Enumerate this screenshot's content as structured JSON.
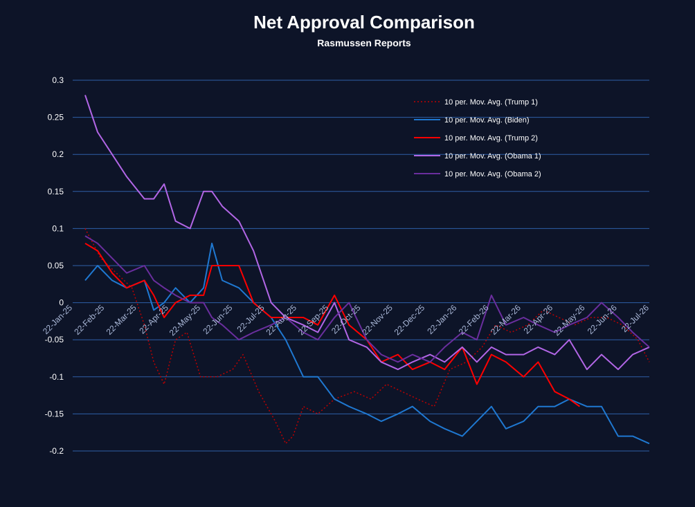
{
  "chart_data": {
    "type": "line",
    "title": "Net Approval Comparison",
    "subtitle": "Rasmussen Reports",
    "xlabel": "",
    "ylabel": "",
    "ylim": [
      -0.2,
      0.3
    ],
    "y_ticks": [
      0.3,
      0.25,
      0.2,
      0.15,
      0.1,
      0.05,
      0,
      -0.05,
      -0.1,
      -0.15,
      -0.2
    ],
    "y_tick_labels": [
      "0.3",
      "0.25",
      "0.2",
      "0.15",
      "0.1",
      "0.05",
      "0",
      "-0.05",
      "-0.1",
      "-0.15",
      "-0.2"
    ],
    "x_tick_labels": [
      "22-Jan-25",
      "22-Feb-25",
      "22-Mar-25",
      "22-Apr-25",
      "22-May-25",
      "22-Jun-25",
      "22-Jul-25",
      "22-Aug-25",
      "22-Sep-25",
      "22-Oct-25",
      "22-Nov-25",
      "22-Dec-25",
      "22-Jan-26",
      "22-Feb-26",
      "22-Mar-26",
      "22-Apr-26",
      "22-May-26",
      "22-Jun-26",
      "22-Jul-26"
    ],
    "x_range": [
      "2025-01-22",
      "2026-07-31"
    ],
    "grid": "horizontal",
    "legend_position": "top-right",
    "series": [
      {
        "name": "10 per. Mov. Avg. (Trump 1)",
        "color": "#c00000",
        "dash": "dotted",
        "x": [
          "2025-02-03",
          "2025-02-18",
          "2025-03-05",
          "2025-03-20",
          "2025-04-01",
          "2025-04-10",
          "2025-04-20",
          "2025-05-01",
          "2025-05-12",
          "2025-05-25",
          "2025-06-10",
          "2025-06-25",
          "2025-07-05",
          "2025-07-20",
          "2025-08-05",
          "2025-08-15",
          "2025-08-22",
          "2025-09-01",
          "2025-09-15",
          "2025-10-01",
          "2025-10-20",
          "2025-11-05",
          "2025-11-20",
          "2025-12-05",
          "2025-12-20",
          "2026-01-05",
          "2026-01-20",
          "2026-02-05",
          "2026-02-20",
          "2026-03-05",
          "2026-03-20",
          "2026-04-05",
          "2026-04-20",
          "2026-05-05",
          "2026-05-20",
          "2026-06-05",
          "2026-06-20",
          "2026-07-05",
          "2026-07-20",
          "2026-07-31"
        ],
        "values": [
          0.1,
          0.06,
          0.04,
          0.02,
          -0.03,
          -0.08,
          -0.11,
          -0.05,
          -0.04,
          -0.1,
          -0.1,
          -0.09,
          -0.07,
          -0.12,
          -0.16,
          -0.19,
          -0.18,
          -0.14,
          -0.15,
          -0.13,
          -0.12,
          -0.13,
          -0.11,
          -0.12,
          -0.13,
          -0.14,
          -0.09,
          -0.08,
          -0.06,
          -0.03,
          -0.04,
          -0.03,
          -0.01,
          -0.02,
          -0.03,
          -0.02,
          -0.02,
          -0.03,
          -0.05,
          -0.08
        ]
      },
      {
        "name": "10 per. Mov. Avg. (Biden)",
        "color": "#1f78d1",
        "dash": "solid",
        "x": [
          "2025-02-03",
          "2025-02-15",
          "2025-03-01",
          "2025-03-15",
          "2025-04-01",
          "2025-04-10",
          "2025-04-20",
          "2025-05-01",
          "2025-05-15",
          "2025-05-28",
          "2025-06-05",
          "2025-06-15",
          "2025-07-01",
          "2025-07-15",
          "2025-08-01",
          "2025-08-15",
          "2025-09-01",
          "2025-09-15",
          "2025-10-01",
          "2025-10-15",
          "2025-11-01",
          "2025-11-15",
          "2025-12-01",
          "2025-12-15",
          "2026-01-01",
          "2026-01-15",
          "2026-02-01",
          "2026-02-15",
          "2026-03-01",
          "2026-03-15",
          "2026-04-01",
          "2026-04-15",
          "2026-05-01",
          "2026-05-15",
          "2026-06-01",
          "2026-06-15",
          "2026-07-01",
          "2026-07-15",
          "2026-07-31"
        ],
        "values": [
          0.03,
          0.05,
          0.03,
          0.02,
          0.03,
          -0.01,
          0.0,
          0.02,
          0.0,
          0.02,
          0.08,
          0.03,
          0.02,
          0.0,
          -0.02,
          -0.05,
          -0.1,
          -0.1,
          -0.13,
          -0.14,
          -0.15,
          -0.16,
          -0.15,
          -0.14,
          -0.16,
          -0.17,
          -0.18,
          -0.16,
          -0.14,
          -0.17,
          -0.16,
          -0.14,
          -0.14,
          -0.13,
          -0.14,
          -0.14,
          -0.18,
          -0.18,
          -0.19
        ]
      },
      {
        "name": "10 per. Mov. Avg. (Trump 2)",
        "color": "#ff0000",
        "dash": "solid",
        "x": [
          "2025-02-03",
          "2025-02-15",
          "2025-03-01",
          "2025-03-15",
          "2025-04-01",
          "2025-04-10",
          "2025-04-20",
          "2025-05-01",
          "2025-05-15",
          "2025-05-28",
          "2025-06-05",
          "2025-06-15",
          "2025-07-01",
          "2025-07-15",
          "2025-08-01",
          "2025-08-15",
          "2025-09-01",
          "2025-09-15",
          "2025-10-01",
          "2025-10-15",
          "2025-11-01",
          "2025-11-15",
          "2025-12-01",
          "2025-12-15",
          "2026-01-01",
          "2026-01-15",
          "2026-02-01",
          "2026-02-15",
          "2026-03-01",
          "2026-03-15",
          "2026-04-01",
          "2026-04-15",
          "2026-05-01",
          "2026-05-15",
          "2026-05-25"
        ],
        "values": [
          0.08,
          0.07,
          0.04,
          0.02,
          0.03,
          0.01,
          -0.02,
          0.0,
          0.01,
          0.01,
          0.05,
          0.05,
          0.05,
          0.0,
          -0.02,
          -0.02,
          -0.02,
          -0.03,
          0.01,
          -0.03,
          -0.05,
          -0.08,
          -0.07,
          -0.09,
          -0.08,
          -0.09,
          -0.06,
          -0.11,
          -0.07,
          -0.08,
          -0.1,
          -0.08,
          -0.12,
          -0.13,
          -0.14
        ]
      },
      {
        "name": "10 per. Mov. Avg. (Obama 1)",
        "color": "#b266e6",
        "dash": "solid",
        "x": [
          "2025-02-03",
          "2025-02-15",
          "2025-03-01",
          "2025-03-15",
          "2025-04-01",
          "2025-04-10",
          "2025-04-20",
          "2025-05-01",
          "2025-05-15",
          "2025-05-28",
          "2025-06-05",
          "2025-06-15",
          "2025-07-01",
          "2025-07-15",
          "2025-08-01",
          "2025-08-15",
          "2025-09-01",
          "2025-09-15",
          "2025-10-01",
          "2025-10-15",
          "2025-11-01",
          "2025-11-15",
          "2025-12-01",
          "2025-12-15",
          "2026-01-01",
          "2026-01-15",
          "2026-02-01",
          "2026-02-15",
          "2026-03-01",
          "2026-03-15",
          "2026-04-01",
          "2026-04-15",
          "2026-05-01",
          "2026-05-15",
          "2026-06-01",
          "2026-06-15",
          "2026-07-01",
          "2026-07-15",
          "2026-07-31"
        ],
        "values": [
          0.28,
          0.23,
          0.2,
          0.17,
          0.14,
          0.14,
          0.16,
          0.11,
          0.1,
          0.15,
          0.15,
          0.13,
          0.11,
          0.07,
          0.0,
          -0.02,
          -0.03,
          -0.04,
          0.0,
          -0.05,
          -0.06,
          -0.08,
          -0.09,
          -0.08,
          -0.07,
          -0.08,
          -0.06,
          -0.08,
          -0.06,
          -0.07,
          -0.07,
          -0.06,
          -0.07,
          -0.05,
          -0.09,
          -0.07,
          -0.09,
          -0.07,
          -0.06
        ]
      },
      {
        "name": "10 per. Mov. Avg. (Obama 2)",
        "color": "#6a2e9e",
        "dash": "solid",
        "x": [
          "2025-02-03",
          "2025-02-15",
          "2025-03-01",
          "2025-03-15",
          "2025-04-01",
          "2025-04-10",
          "2025-04-20",
          "2025-05-01",
          "2025-05-15",
          "2025-05-28",
          "2025-06-05",
          "2025-06-15",
          "2025-07-01",
          "2025-07-15",
          "2025-08-01",
          "2025-08-15",
          "2025-09-01",
          "2025-09-15",
          "2025-10-01",
          "2025-10-15",
          "2025-11-01",
          "2025-11-15",
          "2025-12-01",
          "2025-12-15",
          "2026-01-01",
          "2026-01-15",
          "2026-02-01",
          "2026-02-15",
          "2026-03-01",
          "2026-03-15",
          "2026-04-01",
          "2026-04-15",
          "2026-05-01",
          "2026-05-15",
          "2026-06-01",
          "2026-06-15",
          "2026-07-01",
          "2026-07-15",
          "2026-07-31"
        ],
        "values": [
          0.09,
          0.08,
          0.06,
          0.04,
          0.05,
          0.03,
          0.02,
          0.01,
          0.0,
          0.0,
          -0.02,
          -0.03,
          -0.05,
          -0.04,
          -0.03,
          -0.02,
          -0.04,
          -0.05,
          -0.02,
          0.0,
          -0.05,
          -0.07,
          -0.08,
          -0.07,
          -0.08,
          -0.06,
          -0.04,
          -0.05,
          0.01,
          -0.03,
          -0.02,
          -0.03,
          -0.04,
          -0.03,
          -0.02,
          0.0,
          -0.02,
          -0.04,
          -0.06
        ]
      }
    ]
  }
}
